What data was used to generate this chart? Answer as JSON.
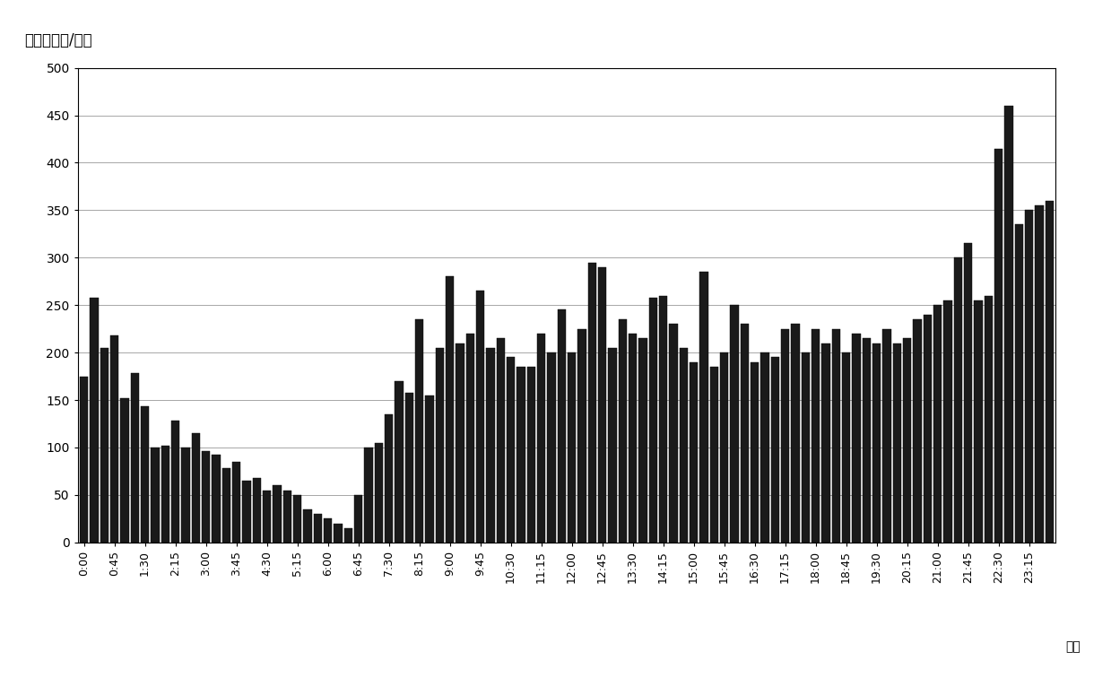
{
  "ylabel": "航空器数量/架次",
  "xlabel_end": "时间",
  "bar_color": "#1a1a1a",
  "background_color": "#ffffff",
  "plot_bg_color": "#ffffff",
  "ylim": [
    0,
    500
  ],
  "yticks": [
    0,
    50,
    100,
    150,
    200,
    250,
    300,
    350,
    400,
    450,
    500
  ],
  "xtick_labels": [
    "0:00",
    "0:45",
    "1:30",
    "2:15",
    "3:00",
    "3:45",
    "4:30",
    "5:15",
    "6:00",
    "6:45",
    "7:30",
    "8:15",
    "9:00",
    "9:45",
    "10:30",
    "11:15",
    "12:00",
    "12:45",
    "13:30",
    "14:15",
    "15:00",
    "15:45",
    "16:30",
    "17:15",
    "18:00",
    "18:45",
    "19:30",
    "20:15",
    "21:00",
    "21:45",
    "22:30",
    "23:15"
  ],
  "xtick_positions": [
    0,
    3,
    6,
    9,
    12,
    15,
    18,
    21,
    24,
    27,
    30,
    33,
    36,
    39,
    42,
    45,
    48,
    51,
    54,
    57,
    60,
    63,
    66,
    69,
    72,
    75,
    78,
    81,
    84,
    87,
    90,
    93
  ],
  "values": [
    175,
    258,
    205,
    218,
    152,
    178,
    143,
    100,
    102,
    128,
    100,
    115,
    96,
    92,
    78,
    85,
    65,
    68,
    55,
    60,
    55,
    50,
    35,
    30,
    25,
    20,
    15,
    50,
    100,
    105,
    135,
    170,
    158,
    235,
    155,
    205,
    280,
    210,
    220,
    265,
    205,
    215,
    195,
    185,
    185,
    220,
    200,
    245,
    200,
    225,
    295,
    290,
    205,
    235,
    220,
    215,
    258,
    260,
    230,
    205,
    190,
    285,
    185,
    200,
    250,
    230,
    190,
    200,
    195,
    225,
    230,
    200,
    225,
    210,
    225,
    200,
    220,
    215,
    210,
    225,
    210,
    215,
    235,
    240,
    250,
    255,
    300,
    315,
    255,
    260,
    415,
    460,
    335,
    350,
    355,
    360
  ]
}
